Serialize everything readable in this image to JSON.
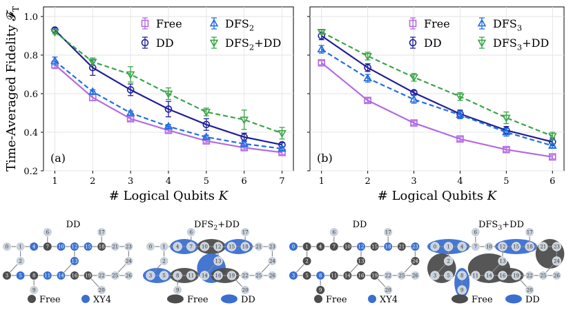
{
  "colors": {
    "free": "#b36ae2",
    "dd": "#1f1f99",
    "dfs": "#1f6fe0",
    "dfsdd": "#3aa547",
    "node_gray": "#c9d1dc",
    "node_dark": "#4d4d4d",
    "node_blue": "#3a6fd0",
    "edge": "#8a8a8a"
  },
  "shared": {
    "ylabel": "Time-Averaged Fidelity 𝓕",
    "ylabel_sub": "T",
    "xlabel": "# Logical Qubits",
    "xlabel_var": "K"
  },
  "chart_data": [
    {
      "type": "line",
      "panel": "(a)",
      "x": [
        1,
        2,
        3,
        4,
        5,
        6,
        7
      ],
      "xlim": [
        0.7,
        7.3
      ],
      "ylim": [
        0.2,
        1.05
      ],
      "yticks": [
        0.2,
        0.4,
        0.6,
        0.8,
        1.0
      ],
      "ytick_labels": [
        "0.2",
        "0.4",
        "0.6",
        "0.8",
        "1.0"
      ],
      "xtick_labels": [
        "1",
        "2",
        "3",
        "4",
        "5",
        "6",
        "7"
      ],
      "legend": "top-right",
      "series": [
        {
          "key": "free",
          "name": "Free",
          "sub": "",
          "suffix": "",
          "marker": "square",
          "dash": "solid",
          "values": [
            0.75,
            0.58,
            0.47,
            0.41,
            0.355,
            0.32,
            0.295
          ],
          "err": [
            0.02,
            0.015,
            0.01,
            0.01,
            0.01,
            0.01,
            0.01
          ]
        },
        {
          "key": "dd",
          "name": "DD",
          "sub": "",
          "suffix": "",
          "marker": "circle",
          "dash": "solid",
          "values": [
            0.93,
            0.735,
            0.62,
            0.52,
            0.44,
            0.375,
            0.335
          ],
          "err": [
            0.01,
            0.04,
            0.03,
            0.04,
            0.03,
            0.02,
            0.01
          ]
        },
        {
          "key": "dfs",
          "name": "DFS",
          "sub": "2",
          "suffix": "",
          "marker": "triangle-up",
          "dash": "dashed",
          "values": [
            0.77,
            0.61,
            0.5,
            0.43,
            0.375,
            0.34,
            0.315
          ],
          "err": [
            0.02,
            0.01,
            0.01,
            0.01,
            0.01,
            0.01,
            0.01
          ]
        },
        {
          "key": "dfsdd",
          "name": "DFS",
          "sub": "2",
          "suffix": "+DD",
          "marker": "triangle-down",
          "dash": "dashed",
          "values": [
            0.92,
            0.765,
            0.7,
            0.6,
            0.505,
            0.465,
            0.395
          ],
          "err": [
            0.01,
            0.02,
            0.04,
            0.03,
            0.02,
            0.05,
            0.03
          ]
        }
      ]
    },
    {
      "type": "line",
      "panel": "(b)",
      "x": [
        1,
        2,
        3,
        4,
        5,
        6
      ],
      "xlim": [
        0.75,
        6.25
      ],
      "ylim": [
        0.2,
        1.05
      ],
      "yticks": [
        0.2,
        0.4,
        0.6,
        0.8,
        1.0
      ],
      "ytick_labels": [],
      "xtick_labels": [
        "1",
        "2",
        "3",
        "4",
        "5",
        "6"
      ],
      "legend": "top-right",
      "series": [
        {
          "key": "free",
          "name": "Free",
          "sub": "",
          "suffix": "",
          "marker": "square",
          "dash": "solid",
          "values": [
            0.76,
            0.565,
            0.448,
            0.365,
            0.31,
            0.272
          ],
          "err": [
            0.01,
            0.01,
            0.01,
            0.01,
            0.01,
            0.01
          ]
        },
        {
          "key": "dd",
          "name": "DD",
          "sub": "",
          "suffix": "",
          "marker": "circle",
          "dash": "solid",
          "values": [
            0.9,
            0.735,
            0.605,
            0.495,
            0.41,
            0.35
          ],
          "err": [
            0.02,
            0.02,
            0.01,
            0.02,
            0.02,
            0.02
          ]
        },
        {
          "key": "dfs",
          "name": "DFS",
          "sub": "3",
          "suffix": "",
          "marker": "triangle-up",
          "dash": "dashed",
          "values": [
            0.83,
            0.68,
            0.57,
            0.49,
            0.4,
            0.33
          ],
          "err": [
            0.02,
            0.02,
            0.02,
            0.02,
            0.02,
            0.01
          ]
        },
        {
          "key": "dfsdd",
          "name": "DFS",
          "sub": "3",
          "suffix": "+DD",
          "marker": "triangle-down",
          "dash": "dashed",
          "values": [
            0.92,
            0.795,
            0.685,
            0.585,
            0.475,
            0.38
          ],
          "err": [
            0.01,
            0.02,
            0.02,
            0.02,
            0.03,
            0.02
          ]
        }
      ]
    }
  ],
  "device_diagrams": [
    {
      "title": "DD",
      "title_sub": "",
      "title_suffix": "",
      "style": "dots",
      "active": [
        4,
        7,
        10,
        12,
        13,
        15,
        18,
        5,
        8,
        11,
        14,
        16,
        19,
        3
      ],
      "blue": [
        4,
        10,
        12,
        13,
        15,
        5,
        11,
        14
      ],
      "groups": [],
      "legend": [
        {
          "label": "Free",
          "kind": "dot-dark"
        },
        {
          "label": "XY4",
          "kind": "dot-blue"
        }
      ]
    },
    {
      "title": "DFS",
      "title_sub": "2",
      "title_suffix": "+DD",
      "style": "groups",
      "active": [],
      "blue": [],
      "groups": [
        {
          "nodes": [
            4,
            7
          ],
          "color": "blue"
        },
        {
          "nodes": [
            10,
            12
          ],
          "color": "dark"
        },
        {
          "nodes": [
            15,
            18
          ],
          "color": "blue"
        },
        {
          "nodes": [
            3,
            5
          ],
          "color": "blue"
        },
        {
          "nodes": [
            8,
            11
          ],
          "color": "dark"
        },
        {
          "nodes": [
            13,
            14
          ],
          "color": "blue"
        },
        {
          "nodes": [
            16,
            19
          ],
          "color": "dark"
        }
      ],
      "legend": [
        {
          "label": "Free",
          "kind": "ellipse-dark"
        },
        {
          "label": "DD",
          "kind": "ellipse-blue"
        }
      ]
    },
    {
      "title": "DD",
      "title_sub": "",
      "title_suffix": "",
      "style": "dots",
      "active": [
        0,
        1,
        2,
        3,
        4,
        5,
        7,
        8,
        9,
        10,
        11,
        12,
        13,
        14,
        15,
        16,
        18,
        19,
        21,
        23,
        24
      ],
      "blue": [
        0,
        3,
        8,
        12,
        18,
        23
      ],
      "groups": [],
      "legend": [
        {
          "label": "Free",
          "kind": "dot-dark"
        },
        {
          "label": "XY4",
          "kind": "dot-blue"
        }
      ]
    },
    {
      "title": "DFS",
      "title_sub": "3",
      "title_suffix": "+DD",
      "style": "groups",
      "active": [],
      "blue": [],
      "groups": [
        {
          "nodes": [
            0,
            1,
            4
          ],
          "color": "blue"
        },
        {
          "nodes": [
            12,
            15,
            18
          ],
          "color": "blue"
        },
        {
          "nodes": [
            21,
            23,
            24
          ],
          "color": "dark"
        },
        {
          "nodes": [
            2,
            3,
            5
          ],
          "color": "dark"
        },
        {
          "nodes": [
            8,
            9
          ],
          "color": "blue"
        },
        {
          "nodes": [
            11,
            14,
            13
          ],
          "color": "dark"
        },
        {
          "nodes": [
            16,
            19
          ],
          "color": "dark"
        }
      ],
      "legend": [
        {
          "label": "Free",
          "kind": "ellipse-dark"
        },
        {
          "label": "DD",
          "kind": "ellipse-blue"
        }
      ]
    }
  ]
}
